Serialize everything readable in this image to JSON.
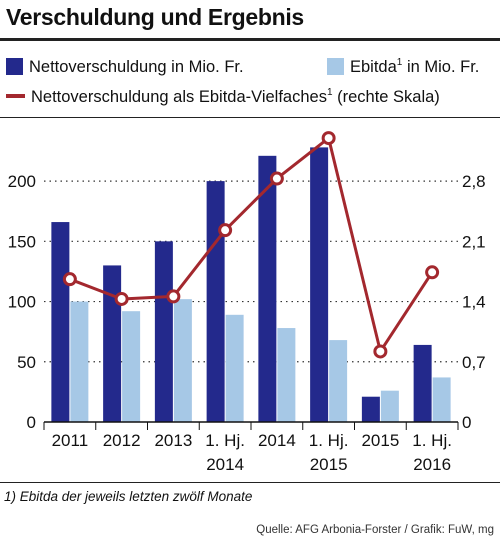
{
  "title": "Verschuldung und Ergebnis",
  "legend": {
    "net_debt": "Nettoverschuldung in Mio. Fr.",
    "ebitda": "Ebitda",
    "ebitda_sup": "1",
    "ebitda_suffix": " in Mio. Fr.",
    "multiple": "Nettoverschuldung als Ebitda-Vielfaches",
    "multiple_sup": "1",
    "multiple_suffix": " (rechte Skala)"
  },
  "footnote": "1) Ebitda der jeweils letzten zwölf Monate",
  "source": "Quelle: AFG Arbonia-Forster / Grafik: FuW, mg",
  "colors": {
    "net_debt": "#23298c",
    "ebitda": "#a6c8e6",
    "multiple": "#a3282e"
  },
  "chart_data": {
    "type": "bar",
    "categories": [
      [
        "2011"
      ],
      [
        "2012"
      ],
      [
        "2013"
      ],
      [
        "1. Hj.",
        "2014"
      ],
      [
        "2014"
      ],
      [
        "1. Hj.",
        "2015"
      ],
      [
        "2015"
      ],
      [
        "1. Hj.",
        "2016"
      ]
    ],
    "series": [
      {
        "name": "Nettoverschuldung in Mio. Fr.",
        "type": "bar",
        "axis": "left",
        "values": [
          166,
          130,
          150,
          200,
          221,
          228,
          21,
          64
        ]
      },
      {
        "name": "Ebitda in Mio. Fr.",
        "type": "bar",
        "axis": "left",
        "values": [
          100,
          92,
          102,
          89,
          78,
          68,
          26,
          37
        ]
      },
      {
        "name": "Nettoverschuldung als Ebitda-Vielfaches (rechte Skala)",
        "type": "line",
        "axis": "right",
        "values": [
          1.66,
          1.43,
          1.46,
          2.23,
          2.83,
          3.3,
          0.82,
          1.74
        ]
      }
    ],
    "y_left": {
      "min": 0,
      "max": 225,
      "ticks": [
        "0",
        "50",
        "100",
        "150",
        "200"
      ],
      "tick_values": [
        0,
        50,
        100,
        150,
        200
      ]
    },
    "y_right": {
      "min": 0,
      "max": 3.15,
      "ticks": [
        "0",
        "0,7",
        "1,4",
        "2,1",
        "2,8"
      ],
      "tick_values": [
        0,
        0.7,
        1.4,
        2.1,
        2.8
      ]
    },
    "grid": "horizontal-dotted"
  }
}
